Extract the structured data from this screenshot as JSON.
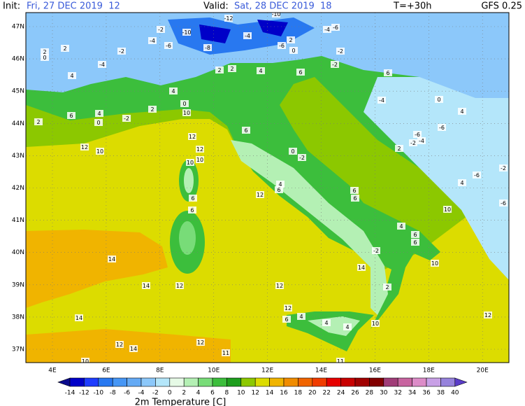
{
  "header": {
    "init_label": "Init:",
    "init_value": "Fri, 27 DEC 2019  12",
    "valid_label": "Valid:",
    "valid_value": "Sat, 28 DEC 2019  18",
    "lead": "T=+30h",
    "model": "GFS 0.25"
  },
  "axes": {
    "lat_labels": [
      "47N",
      "46N",
      "45N",
      "44N",
      "43N",
      "42N",
      "41N",
      "40N",
      "39N",
      "38N",
      "37N"
    ],
    "lon_labels": [
      "4E",
      "6E",
      "8E",
      "10E",
      "12E",
      "14E",
      "16E",
      "18E",
      "20E"
    ]
  },
  "legend": {
    "title": "2m Temperature [C]",
    "labels": [
      "-14",
      "-12",
      "-10",
      "-8",
      "-6",
      "-4",
      "-2",
      "0",
      "2",
      "4",
      "6",
      "8",
      "10",
      "12",
      "14",
      "16",
      "18",
      "20",
      "22",
      "24",
      "26",
      "28",
      "30",
      "32",
      "34",
      "36",
      "38",
      "40"
    ],
    "colors": [
      "#0a0a8c",
      "#0000c8",
      "#1e3cff",
      "#2878f0",
      "#4696f5",
      "#64aaf5",
      "#8cc8fa",
      "#b4e6fa",
      "#e6fae6",
      "#b4f0b4",
      "#78dc78",
      "#3cbe3c",
      "#1e9e1e",
      "#8cc800",
      "#dcdc00",
      "#f0b400",
      "#f08c00",
      "#f06400",
      "#f03c00",
      "#e60000",
      "#c80000",
      "#a00000",
      "#820000",
      "#a03c78",
      "#c864a0",
      "#dc8cc8",
      "#c8a0e6",
      "#9682dc",
      "#5a3cc8"
    ]
  },
  "map": {
    "contour_labels": [
      "-2",
      "-10",
      "-12",
      "-10",
      "-4",
      "-4",
      "-4",
      "-6",
      "2",
      "0",
      "2",
      "-2",
      "-4",
      "-6",
      "-8",
      "2",
      "4",
      "-6",
      "0",
      "2",
      "-2",
      "-2",
      "6",
      "4",
      "4",
      "2",
      "6",
      "-4",
      "2",
      "0",
      "10",
      "4",
      "6",
      "0",
      "-2",
      "2",
      "0",
      "-6",
      "-6",
      "-4",
      "-2",
      "4",
      "2",
      "12",
      "10",
      "12",
      "12",
      "0",
      "-2",
      "10",
      "10",
      "6",
      "-2",
      "-6",
      "4",
      "12",
      "4",
      "6",
      "6",
      "6",
      "10",
      "-6",
      "6",
      "6",
      "14",
      "14",
      "12",
      "12",
      "14",
      "4",
      "6",
      "6",
      "10",
      "-2",
      "2",
      "12",
      "4",
      "6",
      "4",
      "4",
      "10",
      "12",
      "14",
      "12",
      "14",
      "12",
      "11",
      "10",
      "11"
    ]
  }
}
